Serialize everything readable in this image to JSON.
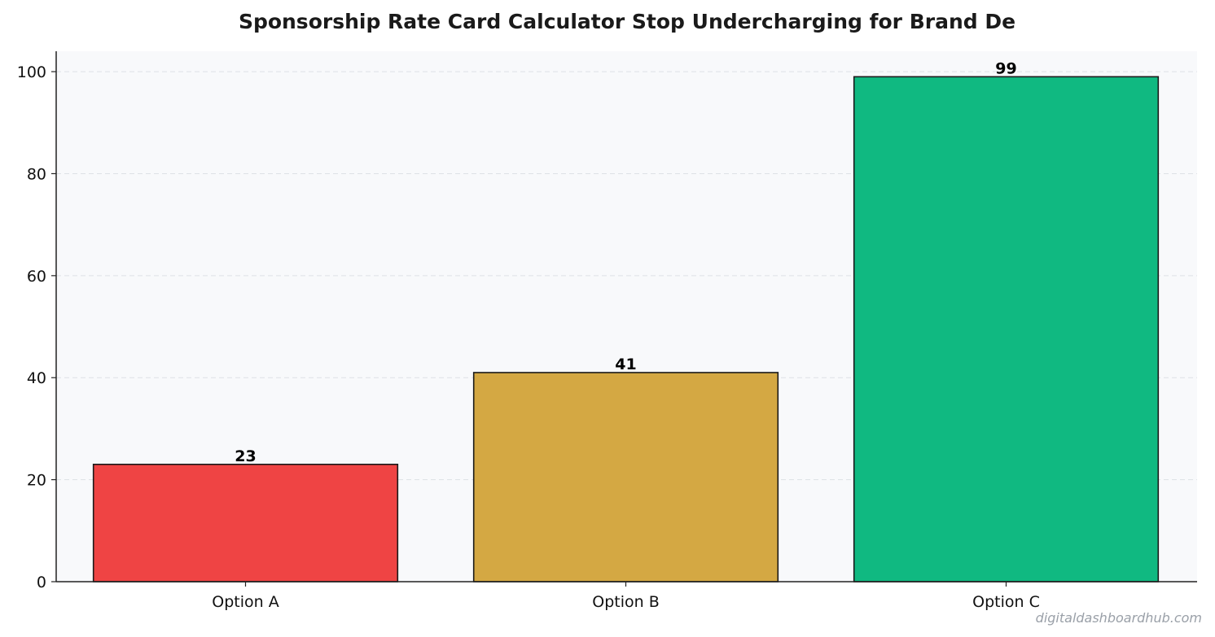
{
  "chart_data": {
    "type": "bar",
    "title": "Sponsorship Rate Card Calculator  Stop Undercharging for Brand De",
    "xlabel": "",
    "ylabel": "",
    "categories": [
      "Option A",
      "Option B",
      "Option C"
    ],
    "values": [
      23,
      41,
      99
    ],
    "colors": [
      "#ef4444",
      "#d4a843",
      "#10b981"
    ],
    "ylim": [
      0,
      104
    ],
    "yticks": [
      0,
      20,
      40,
      60,
      80,
      100
    ],
    "grid": "horizontal-dashed",
    "legend": "none",
    "plot_background": "#f8f9fb",
    "bar_edge_color": "#1a1a1a"
  },
  "watermark": "digitaldashboardhub.com"
}
